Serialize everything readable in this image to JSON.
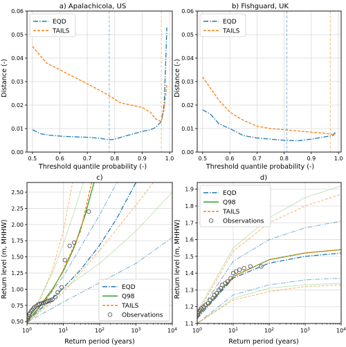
{
  "colors": {
    "eqd": "#1f77b4",
    "tails": "#ff7f0e",
    "q98": "#2ca02c",
    "q98_ci": "#98d68c",
    "obs": "#555555",
    "grid": "#d9d9d9"
  },
  "chart_data": [
    {
      "panel": "a",
      "type": "line",
      "title": "a) Apalachicola, US",
      "xlabel": "Threshold quantile probability (-)",
      "ylabel": "Distance (-)",
      "xlim": [
        0.48,
        1.01
      ],
      "ylim": [
        0,
        0.06
      ],
      "xticks": [
        "0.5",
        "0.6",
        "0.7",
        "0.8",
        "0.9",
        "1.0"
      ],
      "yticks": [
        "0.00",
        "0.01",
        "0.02",
        "0.03",
        "0.04",
        "0.05",
        "0.06"
      ],
      "grid": true,
      "legend": "top-left",
      "vlines": [
        {
          "series": "EQD",
          "x": 0.78
        },
        {
          "series": "TAILS",
          "x": 0.97
        }
      ],
      "series": [
        {
          "name": "EQD",
          "x": [
            0.5,
            0.53,
            0.56,
            0.6,
            0.65,
            0.7,
            0.75,
            0.78,
            0.8,
            0.85,
            0.9,
            0.93,
            0.95,
            0.97,
            0.98,
            0.985,
            0.99
          ],
          "y": [
            0.0095,
            0.0078,
            0.0072,
            0.0068,
            0.0065,
            0.0063,
            0.0058,
            0.0052,
            0.0055,
            0.0072,
            0.0088,
            0.0095,
            0.0105,
            0.013,
            0.02,
            0.035,
            0.053
          ]
        },
        {
          "name": "TAILS",
          "x": [
            0.5,
            0.55,
            0.6,
            0.65,
            0.7,
            0.75,
            0.78,
            0.82,
            0.86,
            0.9,
            0.93,
            0.95,
            0.97,
            0.98,
            0.99
          ],
          "y": [
            0.045,
            0.038,
            0.035,
            0.032,
            0.029,
            0.026,
            0.024,
            0.021,
            0.02,
            0.019,
            0.017,
            0.014,
            0.013,
            0.018,
            0.029
          ]
        }
      ]
    },
    {
      "panel": "b",
      "type": "line",
      "title": "b) Fishguard, UK",
      "xlabel": "Threshold quantile probability (-)",
      "ylabel": "Distance (-)",
      "xlim": [
        0.48,
        1.01
      ],
      "ylim": [
        0,
        0.06
      ],
      "xticks": [
        "0.5",
        "0.6",
        "0.7",
        "0.8",
        "0.9",
        "1.0"
      ],
      "yticks": [
        "0.00",
        "0.01",
        "0.02",
        "0.03",
        "0.04",
        "0.05",
        "0.06"
      ],
      "grid": true,
      "legend": "top-left",
      "vlines": [
        {
          "series": "EQD",
          "x": 0.81
        },
        {
          "series": "TAILS",
          "x": 0.97
        }
      ],
      "series": [
        {
          "name": "EQD",
          "x": [
            0.5,
            0.53,
            0.56,
            0.6,
            0.65,
            0.7,
            0.75,
            0.8,
            0.85,
            0.9,
            0.95,
            0.98,
            0.99
          ],
          "y": [
            0.018,
            0.016,
            0.012,
            0.01,
            0.007,
            0.006,
            0.0055,
            0.005,
            0.0048,
            0.0055,
            0.0065,
            0.007,
            0.009
          ]
        },
        {
          "name": "TAILS",
          "x": [
            0.5,
            0.53,
            0.56,
            0.6,
            0.65,
            0.7,
            0.75,
            0.8,
            0.85,
            0.9,
            0.95,
            0.98,
            0.99
          ],
          "y": [
            0.032,
            0.027,
            0.022,
            0.017,
            0.0135,
            0.011,
            0.01,
            0.0095,
            0.009,
            0.0085,
            0.008,
            0.0075,
            0.0078
          ]
        }
      ]
    },
    {
      "panel": "c",
      "type": "line",
      "title": "c)",
      "xlabel": "Return period (years)",
      "ylabel": "Return level (m, MHHW)",
      "xscale": "log",
      "xlim": [
        1,
        10000
      ],
      "ylim": [
        0.47,
        2.65
      ],
      "xticks": [
        1,
        10,
        100,
        1000,
        10000
      ],
      "yticks": [
        "0.50",
        "0.75",
        "1.00",
        "1.25",
        "1.50",
        "1.75",
        "2.00",
        "2.25",
        "2.50"
      ],
      "grid": true,
      "legend": "bottom-right",
      "series": [
        {
          "name": "EQD",
          "role": "estimate",
          "x": [
            1,
            2,
            5,
            10,
            30,
            100,
            300,
            1000
          ],
          "y": [
            0.5,
            0.66,
            0.86,
            1.02,
            1.3,
            1.68,
            2.1,
            2.65
          ]
        },
        {
          "name": "EQD",
          "role": "ci",
          "x": [
            1,
            10,
            100,
            1000,
            10000
          ],
          "y": [
            0.49,
            0.8,
            1.1,
            1.4,
            1.8
          ]
        },
        {
          "name": "EQD",
          "role": "ci",
          "x": [
            1,
            3,
            10,
            30,
            100,
            300
          ],
          "y": [
            0.52,
            0.8,
            1.2,
            1.65,
            2.15,
            2.65
          ]
        },
        {
          "name": "Q98",
          "role": "estimate",
          "x": [
            1,
            2,
            5,
            10,
            20,
            40,
            70
          ],
          "y": [
            0.5,
            0.7,
            1.0,
            1.28,
            1.65,
            2.15,
            2.65
          ]
        },
        {
          "name": "Q98",
          "role": "ci",
          "x": [
            1,
            2,
            5,
            10,
            20,
            35
          ],
          "y": [
            0.52,
            0.8,
            1.25,
            1.7,
            2.2,
            2.65
          ]
        },
        {
          "name": "Q98",
          "role": "ci",
          "x": [
            1,
            5,
            10,
            100,
            1000,
            10000
          ],
          "y": [
            0.48,
            0.85,
            1.0,
            1.4,
            1.9,
            2.5
          ]
        },
        {
          "name": "TAILS",
          "role": "estimate",
          "x": [
            1,
            2,
            5,
            10,
            30,
            60
          ],
          "y": [
            0.5,
            0.68,
            0.98,
            1.3,
            1.9,
            2.65
          ]
        },
        {
          "name": "TAILS",
          "role": "ci",
          "x": [
            1,
            2,
            5,
            10,
            18
          ],
          "y": [
            0.52,
            0.75,
            1.3,
            1.9,
            2.65
          ]
        },
        {
          "name": "TAILS",
          "role": "ci",
          "x": [
            1,
            10,
            100,
            1000,
            3000
          ],
          "y": [
            0.48,
            0.95,
            1.6,
            2.3,
            2.65
          ]
        }
      ],
      "observations": {
        "name": "Observations",
        "x": [
          1.02,
          1.05,
          1.1,
          1.15,
          1.2,
          1.3,
          1.4,
          1.5,
          1.6,
          1.8,
          2.0,
          2.2,
          2.5,
          2.8,
          3.2,
          3.6,
          4.0,
          4.5,
          5.0,
          6.0,
          7.0,
          9.0,
          11,
          15,
          20,
          50
        ],
        "y": [
          0.52,
          0.55,
          0.58,
          0.61,
          0.63,
          0.66,
          0.68,
          0.7,
          0.72,
          0.74,
          0.76,
          0.77,
          0.78,
          0.79,
          0.8,
          0.81,
          0.82,
          0.83,
          0.84,
          0.88,
          0.95,
          1.03,
          1.45,
          1.67,
          1.72,
          2.2
        ]
      }
    },
    {
      "panel": "d",
      "type": "line",
      "title": "d)",
      "xlabel": "Return period (years)",
      "ylabel": "Return level (m, MHHW)",
      "xscale": "log",
      "xlim": [
        1,
        10000
      ],
      "ylim": [
        1.1,
        1.94
      ],
      "xticks": [
        1,
        10,
        100,
        1000,
        10000
      ],
      "yticks": [
        "1.1",
        "1.2",
        "1.3",
        "1.4",
        "1.5",
        "1.6",
        "1.7",
        "1.8",
        "1.9"
      ],
      "grid": true,
      "legend": "top-left",
      "series": [
        {
          "name": "EQD",
          "role": "estimate",
          "x": [
            1,
            10,
            100,
            1000,
            10000
          ],
          "y": [
            1.13,
            1.37,
            1.46,
            1.5,
            1.52
          ]
        },
        {
          "name": "EQD",
          "role": "ci",
          "x": [
            1,
            10,
            100,
            1000,
            10000
          ],
          "y": [
            1.15,
            1.47,
            1.6,
            1.67,
            1.71
          ]
        },
        {
          "name": "EQD",
          "role": "ci",
          "x": [
            1,
            10,
            100,
            1000,
            10000
          ],
          "y": [
            1.1,
            1.27,
            1.33,
            1.36,
            1.37
          ]
        },
        {
          "name": "Q98",
          "role": "estimate",
          "x": [
            1,
            10,
            100,
            1000,
            10000
          ],
          "y": [
            1.14,
            1.38,
            1.48,
            1.52,
            1.54
          ]
        },
        {
          "name": "Q98",
          "role": "ci",
          "x": [
            1,
            10,
            100,
            1000,
            10000
          ],
          "y": [
            1.17,
            1.55,
            1.73,
            1.85,
            1.92
          ]
        },
        {
          "name": "Q98",
          "role": "ci",
          "x": [
            1,
            10,
            100,
            1000,
            10000
          ],
          "y": [
            1.1,
            1.25,
            1.31,
            1.33,
            1.34
          ]
        },
        {
          "name": "TAILS",
          "role": "estimate",
          "x": [
            1,
            10,
            100,
            1000,
            10000
          ],
          "y": [
            1.14,
            1.38,
            1.48,
            1.52,
            1.54
          ]
        },
        {
          "name": "TAILS",
          "role": "ci",
          "x": [
            1,
            10,
            100,
            1000,
            10000
          ],
          "y": [
            1.16,
            1.53,
            1.7,
            1.8,
            1.87
          ]
        },
        {
          "name": "TAILS",
          "role": "ci",
          "x": [
            1,
            10,
            100,
            1000,
            10000
          ],
          "y": [
            1.1,
            1.24,
            1.29,
            1.32,
            1.33
          ]
        }
      ],
      "observations": {
        "name": "Observations",
        "x": [
          1.02,
          1.05,
          1.1,
          1.2,
          1.3,
          1.5,
          1.7,
          2.0,
          2.3,
          2.7,
          3.0,
          3.5,
          4.0,
          4.5,
          5.0,
          6.0,
          7.0,
          8.5,
          10,
          12,
          15,
          20,
          30,
          60
        ],
        "y": [
          1.15,
          1.16,
          1.17,
          1.18,
          1.19,
          1.2,
          1.21,
          1.22,
          1.24,
          1.25,
          1.27,
          1.28,
          1.3,
          1.31,
          1.33,
          1.34,
          1.35,
          1.37,
          1.4,
          1.41,
          1.42,
          1.43,
          1.44,
          1.44
        ]
      }
    }
  ]
}
